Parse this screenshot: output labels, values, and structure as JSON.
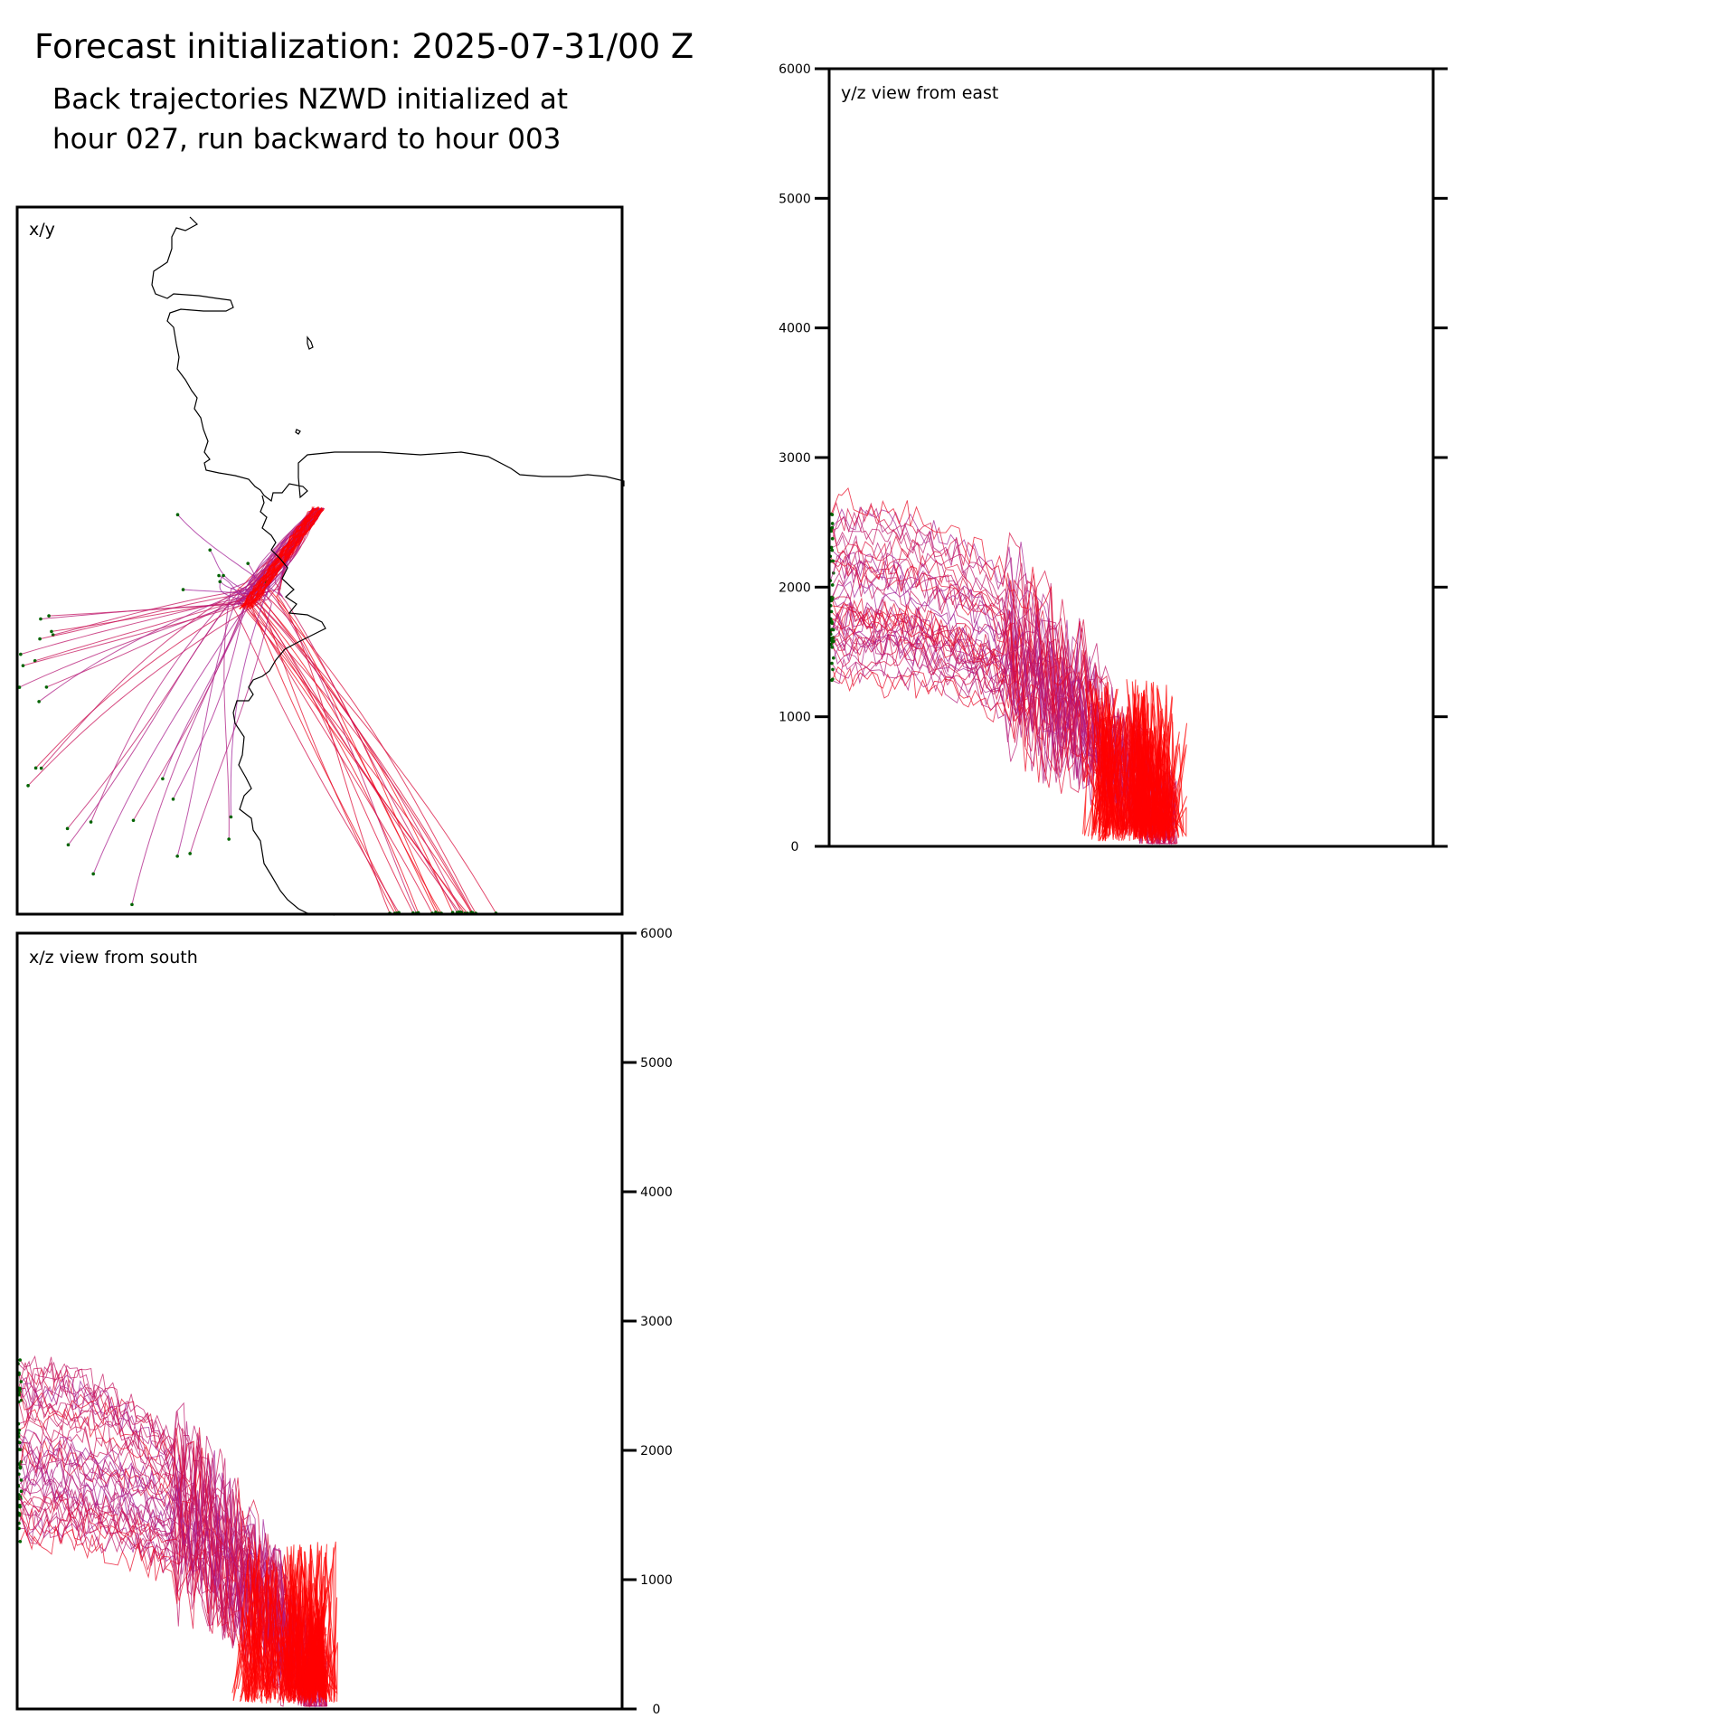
{
  "figure": {
    "title": "Forecast initialization: 2025-07-31/00 Z",
    "subtitle_lines": [
      "Back trajectories NZWD initialized at",
      "hour 027, run backward to hour 003"
    ]
  },
  "colors": {
    "early_trajectory": "#ff0000",
    "late_trajectory": "#a0209a",
    "endpoint_marker": "#006400",
    "coastline": "#000000",
    "frame": "#000000"
  },
  "chart_data": [
    {
      "type": "line",
      "title": "x/y",
      "xlabel": "",
      "ylabel": "",
      "axes_ticks": "none",
      "grid": false,
      "legend": "none",
      "background_layer": "coastline map",
      "description_series": [
        {
          "values": "trajectory bundle starting near station, fanning south-west and south-east"
        }
      ]
    },
    {
      "type": "line",
      "title": "y/z view from east",
      "xlabel": "",
      "ylabel": "",
      "ylim": [
        0,
        6000
      ],
      "yticks": [
        0,
        1000,
        2000,
        3000,
        4000,
        5000,
        6000
      ],
      "tick_side": "left",
      "grid": false,
      "legend": "none"
    },
    {
      "type": "line",
      "title": "x/z view from south",
      "xlabel": "",
      "ylabel": "",
      "ylim": [
        0,
        6000
      ],
      "yticks": [
        0,
        1000,
        2000,
        3000,
        4000,
        5000,
        6000
      ],
      "tick_side": "right",
      "grid": false,
      "legend": "none"
    }
  ]
}
